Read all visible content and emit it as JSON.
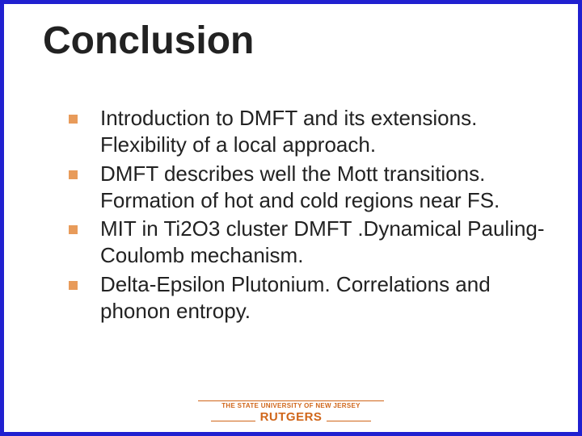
{
  "slide": {
    "border_color": "#2020d0",
    "background_color": "#ffffff",
    "title": {
      "text": "Conclusion",
      "fontsize": 48,
      "fontweight": "bold",
      "color": "#222222"
    },
    "bullets": {
      "marker_color": "#e89b5a",
      "marker_size": 11,
      "text_fontsize": 26,
      "text_color": "#222222",
      "items": [
        "Introduction to DMFT and its extensions. Flexibility of a local approach.",
        "DMFT describes well  the Mott transitions. Formation of hot  and cold regions near FS.",
        "MIT in  Ti2O3 cluster DMFT .Dynamical Pauling-Coulomb mechanism.",
        "Delta-Epsilon  Plutonium. Correlations and phonon entropy."
      ]
    },
    "footer": {
      "rule_color": "#d0661a",
      "small_text": "THE STATE UNIVERSITY OF NEW JERSEY",
      "small_fontsize": 8,
      "big_text": "RUTGERS",
      "big_fontsize": 15,
      "text_color": "#d0661a"
    }
  }
}
